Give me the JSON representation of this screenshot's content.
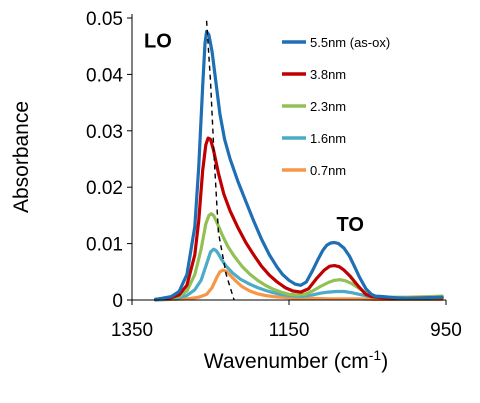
{
  "chart_data": {
    "type": "line",
    "title": "",
    "xlabel": "Wavenumber (cm",
    "xlabel_sup": "-1",
    "xlabel_tail": ")",
    "ylabel": "Absorbance",
    "xlim": [
      1350,
      950
    ],
    "ylim": [
      0,
      0.05
    ],
    "x_reversed": true,
    "grid": false,
    "legend": "top-right",
    "x_ticks": [
      1350,
      1150,
      950
    ],
    "x_tick_labels": [
      "1350",
      "1150",
      "950"
    ],
    "y_ticks": [
      0,
      0.01,
      0.02,
      0.03,
      0.04,
      0.05
    ],
    "y_tick_labels": [
      "0",
      "0.01",
      "0.02",
      "0.03",
      "0.04",
      "0.05"
    ],
    "annotations": [
      {
        "text": "LO",
        "x": 1317,
        "y": 0.0448
      },
      {
        "text": "TO",
        "x": 1072,
        "y": 0.0122
      }
    ],
    "peak_guide": {
      "style": "dashed",
      "points": [
        [
          1255,
          0.0495
        ],
        [
          1250,
          0.0388
        ],
        [
          1245,
          0.0245
        ],
        [
          1240,
          0.012
        ],
        [
          1230,
          0.0045
        ],
        [
          1220,
          0.0
        ]
      ]
    },
    "series": [
      {
        "name": "5.5nm (as-ox)",
        "color": "#1f6fb4",
        "x": [
          1320,
          1300,
          1290,
          1280,
          1270,
          1265,
          1260,
          1257,
          1255,
          1252,
          1248,
          1243,
          1238,
          1232,
          1225,
          1215,
          1205,
          1195,
          1185,
          1175,
          1165,
          1158,
          1150,
          1142,
          1135,
          1128,
          1120,
          1113,
          1107,
          1102,
          1097,
          1092,
          1087,
          1080,
          1073,
          1066,
          1060,
          1052,
          1045,
          1040,
          1030,
          1015,
          1000,
          985,
          970,
          955
        ],
        "y": [
          0.0001,
          0.0006,
          0.0015,
          0.0045,
          0.013,
          0.0235,
          0.038,
          0.0455,
          0.0476,
          0.047,
          0.044,
          0.0385,
          0.033,
          0.0285,
          0.025,
          0.021,
          0.0175,
          0.014,
          0.0108,
          0.008,
          0.0058,
          0.0045,
          0.0035,
          0.0028,
          0.0026,
          0.0032,
          0.0052,
          0.0072,
          0.0088,
          0.0097,
          0.0101,
          0.0102,
          0.01,
          0.0092,
          0.0078,
          0.0058,
          0.004,
          0.002,
          0.001,
          0.0007,
          0.0006,
          0.0004,
          0.0003,
          0.0003,
          0.0004,
          0.0005
        ]
      },
      {
        "name": "3.8nm",
        "color": "#c00000",
        "x": [
          1320,
          1300,
          1290,
          1280,
          1270,
          1265,
          1260,
          1256,
          1253,
          1250,
          1246,
          1240,
          1233,
          1225,
          1215,
          1205,
          1195,
          1185,
          1175,
          1165,
          1155,
          1145,
          1135,
          1125,
          1115,
          1105,
          1098,
          1092,
          1086,
          1080,
          1072,
          1062,
          1052,
          1045,
          1030,
          1000,
          970,
          955
        ],
        "y": [
          0.0001,
          0.0004,
          0.0009,
          0.0026,
          0.008,
          0.014,
          0.023,
          0.0275,
          0.0287,
          0.0285,
          0.0265,
          0.0225,
          0.0188,
          0.0158,
          0.0128,
          0.0102,
          0.008,
          0.006,
          0.0044,
          0.0032,
          0.0022,
          0.0016,
          0.0014,
          0.002,
          0.0038,
          0.0053,
          0.006,
          0.0061,
          0.0059,
          0.0053,
          0.0042,
          0.0025,
          0.001,
          0.0006,
          0.0004,
          0.0003,
          0.0004,
          0.0004
        ]
      },
      {
        "name": "2.3nm",
        "color": "#92c055",
        "x": [
          1320,
          1300,
          1290,
          1280,
          1270,
          1262,
          1256,
          1252,
          1249,
          1246,
          1242,
          1236,
          1228,
          1220,
          1210,
          1200,
          1190,
          1180,
          1170,
          1160,
          1150,
          1140,
          1130,
          1120,
          1110,
          1100,
          1092,
          1085,
          1078,
          1070,
          1060,
          1050,
          1040,
          1030,
          1000,
          970,
          955
        ],
        "y": [
          0.0001,
          0.0003,
          0.0006,
          0.0016,
          0.0045,
          0.009,
          0.0135,
          0.015,
          0.0153,
          0.015,
          0.0138,
          0.0118,
          0.0095,
          0.0078,
          0.006,
          0.0046,
          0.0035,
          0.0026,
          0.0019,
          0.0014,
          0.001,
          0.0009,
          0.001,
          0.0016,
          0.0024,
          0.0031,
          0.0035,
          0.0036,
          0.0034,
          0.0029,
          0.002,
          0.0011,
          0.0006,
          0.0005,
          0.0005,
          0.0006,
          0.0007
        ]
      },
      {
        "name": "1.6nm",
        "color": "#4aacc6",
        "x": [
          1320,
          1300,
          1290,
          1280,
          1270,
          1262,
          1256,
          1250,
          1246,
          1243,
          1240,
          1236,
          1230,
          1222,
          1212,
          1200,
          1190,
          1180,
          1170,
          1160,
          1150,
          1140,
          1130,
          1120,
          1110,
          1100,
          1090,
          1080,
          1070,
          1060,
          1050,
          1040,
          1020,
          1000,
          970,
          955
        ],
        "y": [
          0.0,
          0.0002,
          0.0004,
          0.0008,
          0.0018,
          0.0035,
          0.006,
          0.0085,
          0.009,
          0.0088,
          0.0082,
          0.0072,
          0.006,
          0.0048,
          0.0037,
          0.0028,
          0.0022,
          0.0017,
          0.0013,
          0.001,
          0.0008,
          0.0007,
          0.0007,
          0.0009,
          0.0012,
          0.0014,
          0.0015,
          0.0015,
          0.0013,
          0.001,
          0.0007,
          0.0005,
          0.0004,
          0.0004,
          0.0004,
          0.0005
        ]
      },
      {
        "name": "0.7nm",
        "color": "#f79646",
        "x": [
          1320,
          1300,
          1280,
          1265,
          1255,
          1248,
          1242,
          1238,
          1234,
          1230,
          1225,
          1218,
          1210,
          1200,
          1190,
          1180,
          1170,
          1160,
          1150,
          1140,
          1120,
          1100,
          1080,
          1060,
          1040,
          1020,
          1000,
          970,
          955
        ],
        "y": [
          0.0,
          0.0001,
          0.0002,
          0.0005,
          0.001,
          0.0022,
          0.004,
          0.005,
          0.0053,
          0.0051,
          0.0044,
          0.0034,
          0.0024,
          0.0016,
          0.0011,
          0.0008,
          0.0006,
          0.0005,
          0.0004,
          0.0003,
          0.0003,
          0.0002,
          0.0002,
          0.0002,
          0.0001,
          0.0001,
          0.0001,
          0.0001,
          0.0001
        ]
      }
    ]
  }
}
